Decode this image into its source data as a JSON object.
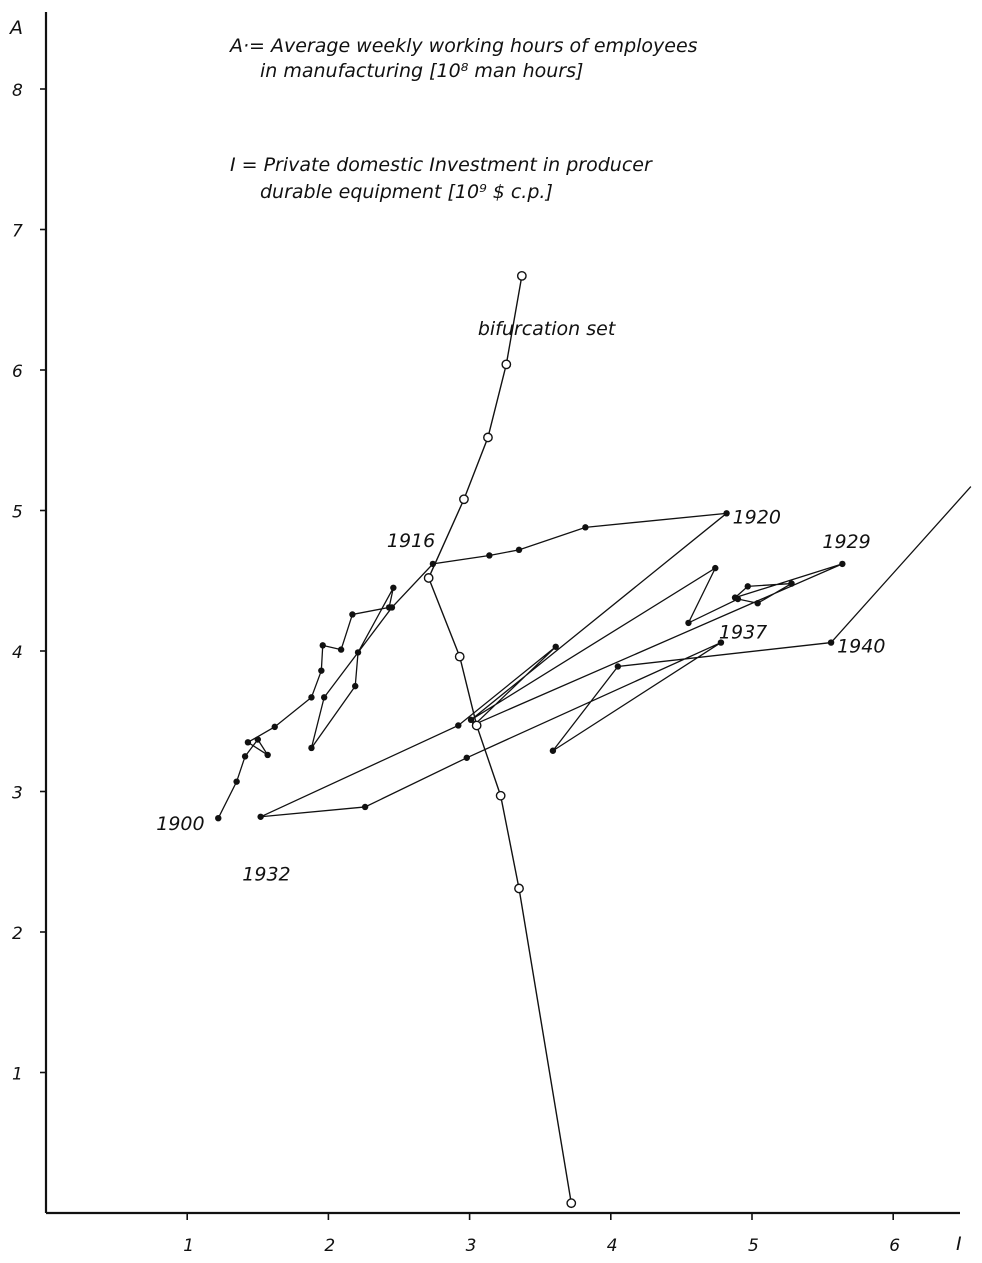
{
  "chart_data": {
    "type": "scatter",
    "x_axis": {
      "title": "I",
      "ticks": [
        "1",
        "2",
        "3",
        "4",
        "5",
        "6"
      ],
      "range": [
        0,
        6.6
      ]
    },
    "y_axis": {
      "title": "A",
      "ticks": [
        "1",
        "2",
        "3",
        "4",
        "5",
        "6",
        "7",
        "8"
      ],
      "range": [
        0,
        8.4
      ]
    },
    "grid": false,
    "legend": {
      "placement": "top",
      "lines": [
        "A·= Average weekly working hours of employees",
        "in manufacturing [10⁸ man hours]",
        "I = Private domestic Investment in producer",
        "durable equipment [10⁹ $ c.p.]"
      ]
    },
    "series": [
      {
        "values": [
          [
            1.22,
            2.81
          ],
          [
            1.35,
            3.07
          ],
          [
            1.41,
            3.25
          ],
          [
            1.5,
            3.37
          ],
          [
            1.57,
            3.26
          ],
          [
            1.43,
            3.35
          ],
          [
            1.62,
            3.46
          ],
          [
            1.88,
            3.67
          ],
          [
            1.95,
            3.86
          ],
          [
            1.96,
            4.04
          ],
          [
            2.09,
            4.01
          ],
          [
            2.17,
            4.26
          ],
          [
            2.43,
            4.31
          ],
          [
            2.46,
            4.45
          ],
          [
            2.21,
            3.99
          ],
          [
            2.19,
            3.75
          ],
          [
            1.88,
            3.31
          ],
          [
            1.97,
            3.67
          ],
          [
            2.45,
            4.31
          ],
          [
            2.74,
            4.62
          ],
          [
            3.14,
            4.68
          ],
          [
            3.35,
            4.72
          ],
          [
            3.82,
            4.88
          ],
          [
            4.82,
            4.98
          ],
          [
            3.01,
            3.51
          ],
          [
            4.74,
            4.59
          ],
          [
            4.55,
            4.2
          ],
          [
            4.9,
            4.37
          ],
          [
            5.04,
            4.34
          ],
          [
            5.28,
            4.48
          ],
          [
            4.97,
            4.46
          ],
          [
            4.88,
            4.38
          ],
          [
            5.64,
            4.62
          ],
          [
            3.04,
            3.48
          ],
          [
            3.61,
            4.03
          ],
          [
            2.92,
            3.47
          ],
          [
            1.52,
            2.82
          ],
          [
            2.26,
            2.89
          ],
          [
            2.98,
            3.24
          ],
          [
            4.78,
            4.06
          ],
          [
            3.59,
            3.29
          ],
          [
            4.05,
            3.89
          ],
          [
            5.56,
            4.06
          ],
          [
            6.55,
            5.17
          ]
        ]
      },
      {
        "name": "bifurcation set",
        "values": [
          [
            3.37,
            6.67
          ],
          [
            3.26,
            6.04
          ],
          [
            3.13,
            5.52
          ],
          [
            2.96,
            5.08
          ],
          [
            2.71,
            4.52
          ],
          [
            2.93,
            3.96
          ],
          [
            3.05,
            3.47
          ],
          [
            3.22,
            2.97
          ],
          [
            3.35,
            2.31
          ],
          [
            3.72,
            0.07
          ]
        ]
      }
    ],
    "annotations": [
      {
        "text": "1900",
        "x": 1.22,
        "y": 2.81
      },
      {
        "text": "1916",
        "x": 2.74,
        "y": 4.62
      },
      {
        "text": "1920",
        "x": 4.82,
        "y": 4.98
      },
      {
        "text": "1929",
        "x": 5.64,
        "y": 4.62
      },
      {
        "text": "1932",
        "x": 1.56,
        "y": 2.63
      },
      {
        "text": "1937",
        "x": 4.78,
        "y": 4.06
      },
      {
        "text": "1940",
        "x": 5.56,
        "y": 4.06
      },
      {
        "text": "bifurcation set",
        "x": 3.37,
        "y": 6.25
      }
    ]
  }
}
